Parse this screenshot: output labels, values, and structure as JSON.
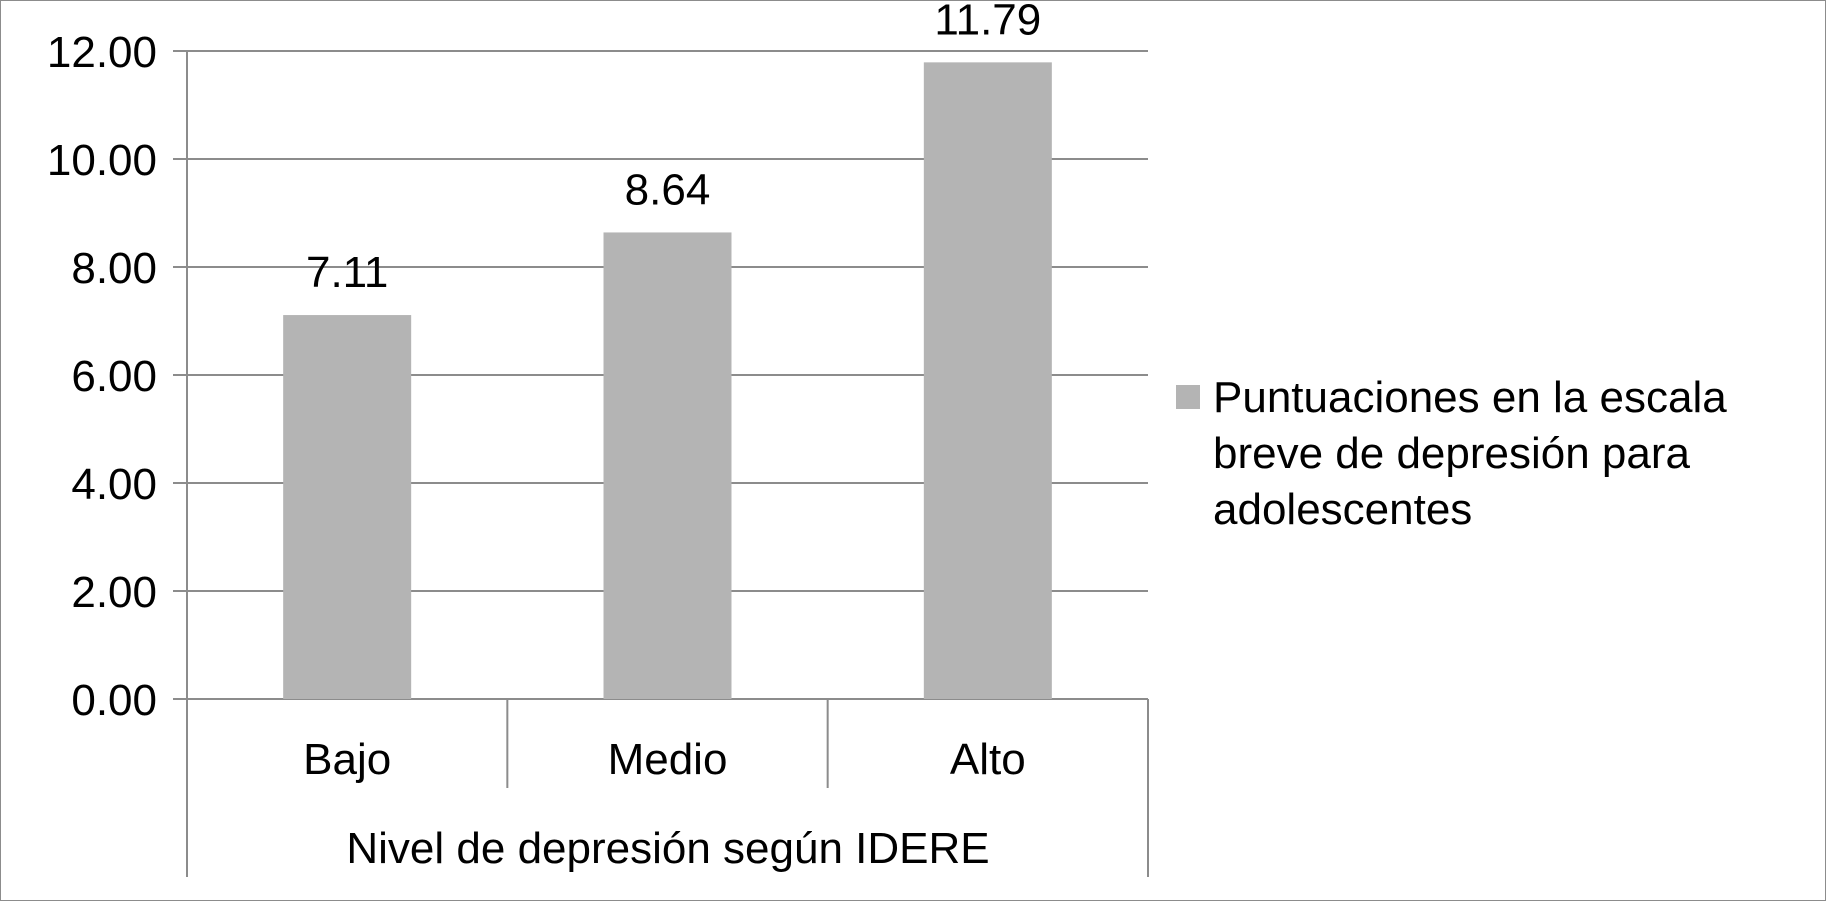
{
  "chart_data": {
    "type": "bar",
    "categories": [
      "Bajo",
      "Medio",
      "Alto"
    ],
    "series": [
      {
        "name": "Puntuaciones en la escala breve de depresión para adolescentes",
        "values": [
          7.11,
          8.64,
          11.79
        ],
        "value_labels": [
          "7.11",
          "8.64",
          "11.79"
        ],
        "color": "#b4b4b4"
      }
    ],
    "y_ticks": [
      "0.00",
      "2.00",
      "4.00",
      "6.00",
      "8.00",
      "10.00",
      "12.00"
    ],
    "ylim": [
      0,
      12
    ],
    "xlabel": "Nivel de depresión según IDERE",
    "ylabel": "",
    "title": "",
    "grid": true,
    "legend_position": "right",
    "legend_lines": [
      "Puntuaciones en la escala",
      "breve de depresión para",
      "adolescentes"
    ],
    "gridline_color": "#8c8c8c"
  }
}
